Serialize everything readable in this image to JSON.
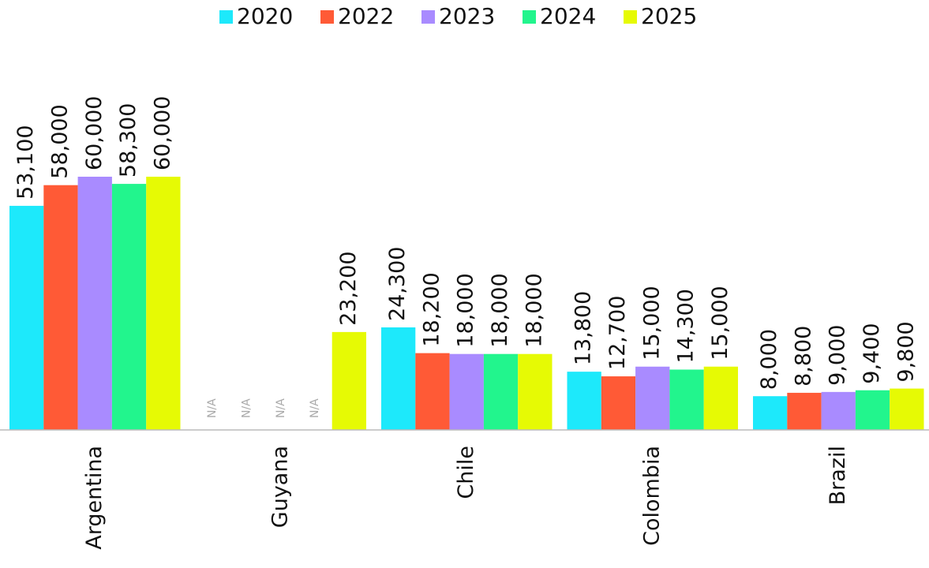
{
  "chart_data": {
    "type": "bar",
    "categories": [
      "Argentina",
      "Guyana",
      "Chile",
      "Colombia",
      "Brazil"
    ],
    "series": [
      {
        "name": "2020",
        "color": "#1de9fb",
        "values": [
          53100,
          null,
          24300,
          13800,
          8000
        ],
        "value_labels": [
          "53,100",
          "N/A",
          "24,300",
          "13,800",
          "8,000"
        ]
      },
      {
        "name": "2022",
        "color": "#ff5a36",
        "values": [
          58000,
          null,
          18200,
          12700,
          8800
        ],
        "value_labels": [
          "58,000",
          "N/A",
          "18,200",
          "12,700",
          "8,800"
        ]
      },
      {
        "name": "2023",
        "color": "#a98bff",
        "values": [
          60000,
          null,
          18000,
          15000,
          9000
        ],
        "value_labels": [
          "60,000",
          "N/A",
          "18,000",
          "15,000",
          "9,000"
        ]
      },
      {
        "name": "2024",
        "color": "#22f58d",
        "values": [
          58300,
          null,
          18000,
          14300,
          9400
        ],
        "value_labels": [
          "58,300",
          "N/A",
          "18,000",
          "14,300",
          "9,400"
        ]
      },
      {
        "name": "2025",
        "color": "#e6fa04",
        "values": [
          60000,
          23200,
          18000,
          15000,
          9800
        ],
        "value_labels": [
          "60,000",
          "23,200",
          "18,000",
          "15,000",
          "9,800"
        ]
      }
    ]
  }
}
